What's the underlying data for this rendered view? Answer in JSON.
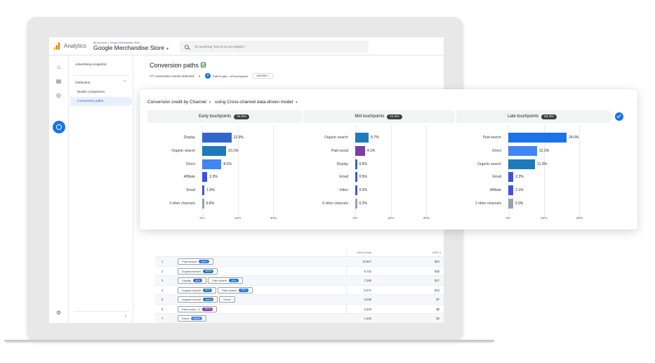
{
  "app": {
    "name": "Analytics",
    "breadcrumb": "All accounts > Google Merchandise Store",
    "property": "Google Merchandise Store",
    "search_placeholder": "Try searching \"how to set up Analytics\""
  },
  "nav": {
    "items": [
      "Advertising snapshot",
      "Attribution",
      "Model comparison",
      "Conversion paths"
    ],
    "active": "Conversion paths"
  },
  "page": {
    "title": "Conversion paths",
    "events_selected": "7/7 conversion events selected",
    "path_filter": "Path length < all touchpoints",
    "add_filter": "Add filter"
  },
  "popover": {
    "title_prefix": "Conversion credit by",
    "dimension": "Channel",
    "model_prefix": "using",
    "model": "Cross-channel data-driven model",
    "stages": [
      {
        "label": "Early touchpoints",
        "badge": "34.5%"
      },
      {
        "label": "Mid touchpoints",
        "badge": "11.2%"
      },
      {
        "label": "Late touchpoints",
        "badge": "54.3%"
      }
    ],
    "tick_labels": [
      "0%",
      "15%",
      "30%"
    ]
  },
  "chart_data": {
    "type": "bar",
    "orientation": "horizontal",
    "panels": [
      {
        "name": "Early touchpoints",
        "categories": [
          "Display",
          "Organic search",
          "Direct",
          "Affiliate",
          "Email",
          "3 other channels"
        ],
        "values": [
          12.3,
          10.1,
          8.1,
          2.2,
          1.0,
          0.6
        ],
        "value_labels": [
          "12.3%",
          "10.1%",
          "8.1%",
          "2.2%",
          "1.0%",
          "0.6%"
        ],
        "colors": [
          "#3366cc",
          "#1e7ab8",
          "#4285f4",
          "#3f51e4",
          "#3f51e4",
          "#9aa0a6"
        ],
        "xlim": [
          0,
          30
        ]
      },
      {
        "name": "Mid touchpoints",
        "categories": [
          "Organic search",
          "Paid social",
          "Display",
          "Email",
          "Video",
          "4 other channels"
        ],
        "values": [
          5.7,
          4.1,
          0.5,
          0.5,
          0.2,
          0.2
        ],
        "value_labels": [
          "5.7%",
          "4.1%",
          "0.5%",
          "0.5%",
          "0.2%",
          "0.2%"
        ],
        "colors": [
          "#1e7ab8",
          "#7b3fa8",
          "#3366cc",
          "#3f51e4",
          "#3f51e4",
          "#9aa0a6"
        ],
        "xlim": [
          0,
          30
        ]
      },
      {
        "name": "Late touchpoints",
        "categories": [
          "Paid search",
          "Direct",
          "Organic search",
          "Email",
          "Affiliate",
          "2 other channels"
        ],
        "values": [
          24.6,
          12.1,
          11.3,
          2.2,
          2.1,
          2.0
        ],
        "value_labels": [
          "24.6%",
          "12.1%",
          "11.3%",
          "2.2%",
          "2.1%",
          "2.0%"
        ],
        "colors": [
          "#1a73e8",
          "#4285f4",
          "#1e7ab8",
          "#3f51e4",
          "#3f51e4",
          "#9aa0a6"
        ],
        "xlim": [
          0,
          30
        ]
      }
    ]
  },
  "table": {
    "col_header": "100% of total",
    "col_header2": "100% o",
    "rows": [
      {
        "num": "1",
        "steps": [
          {
            "label": "Paid search",
            "pct": "100%",
            "color": "#1a73e8"
          }
        ],
        "value": "10,927",
        "value2": "$24"
      },
      {
        "num": "2",
        "steps": [
          {
            "label": "Organic search",
            "pct": "100%",
            "color": "#1e7ab8"
          }
        ],
        "value": "8,742",
        "value2": "$33"
      },
      {
        "num": "3",
        "steps": [
          {
            "label": "Display",
            "pct": "50%",
            "color": "#3366cc"
          },
          {
            "label": "Paid search",
            "pct": "50%",
            "color": "#1a73e8"
          }
        ],
        "value": "7,285",
        "value2": "$17"
      },
      {
        "num": "4",
        "steps": [
          {
            "label": "Organic search",
            "pct": "50%",
            "color": "#1e7ab8"
          },
          {
            "label": "Paid search",
            "pct": "50%",
            "color": "#1a73e8"
          }
        ],
        "value": "6,071",
        "value2": "$14"
      },
      {
        "num": "5",
        "steps": [
          {
            "label": "Organic search",
            "pct": "100%",
            "color": "#1e7ab8"
          },
          {
            "label": "Direct",
            "pct": "",
            "color": ""
          }
        ],
        "value": "3,035",
        "value2": "$7"
      },
      {
        "num": "6",
        "steps": [
          {
            "label": "Paid social × 2",
            "pct": "100%",
            "color": "#7b3fa8"
          }
        ],
        "value": "2,525",
        "value2": "$6"
      },
      {
        "num": "7",
        "steps": [
          {
            "label": "Direct",
            "pct": "100%",
            "color": "#4285f4"
          }
        ],
        "value": "1,518",
        "value2": "$3"
      },
      {
        "num": "8",
        "steps": [
          {
            "label": "Direct × 2",
            "pct": "100%",
            "color": "#4285f4"
          }
        ],
        "value": "518",
        "value2": "$1"
      },
      {
        "num": "9",
        "steps": [
          {
            "label": "Email",
            "pct": "100%",
            "color": "#3f51e4"
          },
          {
            "label": "Direct",
            "pct": "",
            "color": ""
          }
        ],
        "value": "312",
        "value2": "$"
      }
    ]
  },
  "colors": {
    "accent": "#1a73e8",
    "logo": [
      "#f9ab00",
      "#e37400",
      "#e37400"
    ]
  },
  "icons": [
    "analytics-logo-icon",
    "search-icon",
    "home-icon",
    "reports-icon",
    "explore-icon",
    "advertising-icon",
    "settings-icon",
    "collapse-icon",
    "check-icon"
  ]
}
